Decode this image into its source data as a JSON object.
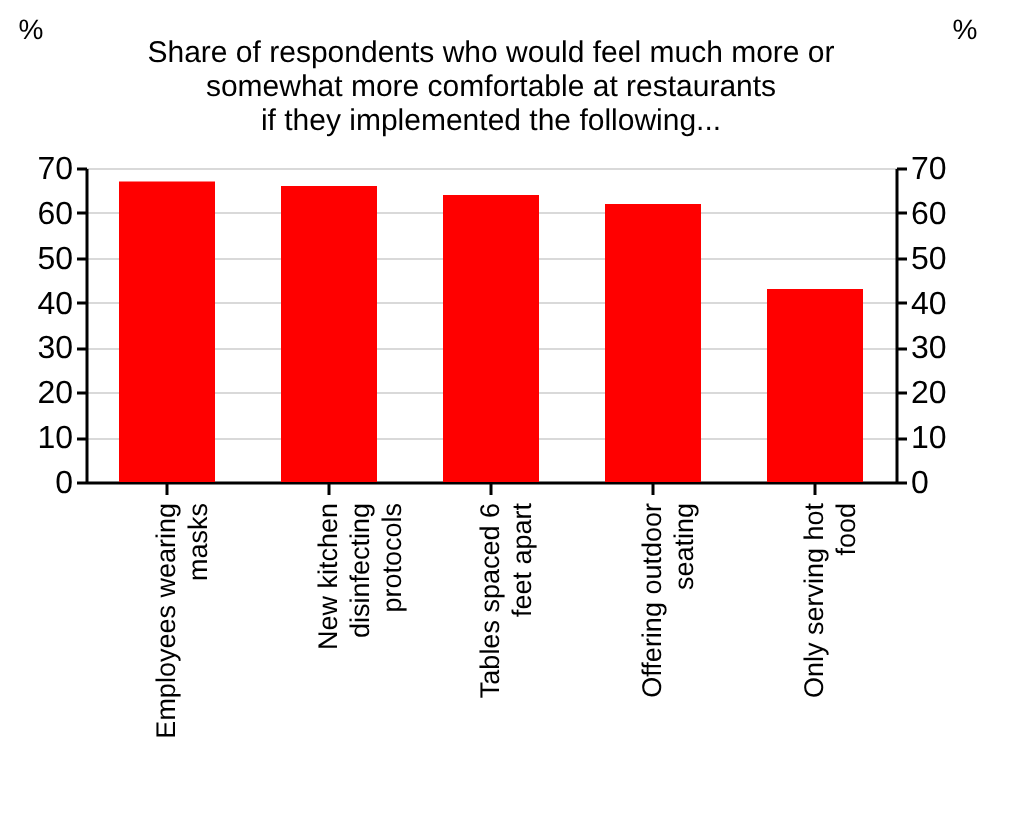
{
  "chart_data": {
    "type": "bar",
    "title": [
      "Share of respondents who would feel much more or",
      "somewhat more comfortable at restaurants",
      "if they implemented the following..."
    ],
    "categories": [
      "Employees wearing masks",
      "New kitchen disinfecting protocols",
      "Tables spaced 6 feet apart",
      "Offering outdoor seating",
      "Only serving hot food"
    ],
    "values": [
      67,
      66,
      64,
      62,
      43
    ],
    "color": "#ff0000",
    "ylabel": "%",
    "y2label": "%",
    "ylim": [
      0,
      70
    ],
    "yticks": [
      0,
      10,
      20,
      30,
      40,
      50,
      60,
      70
    ],
    "y2lim": [
      0,
      70
    ],
    "y2ticks": [
      0,
      10,
      20,
      30,
      40,
      50,
      60,
      70
    ],
    "grid": "y"
  }
}
